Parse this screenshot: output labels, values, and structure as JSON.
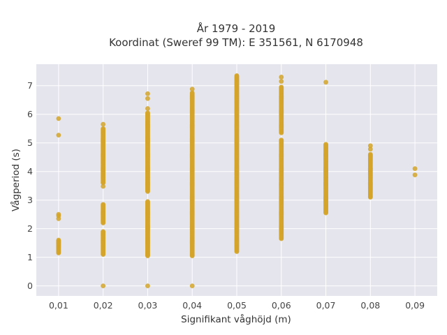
{
  "chart_data": {
    "type": "scatter",
    "title_lines": [
      "År 1979 - 2019",
      "Koordinat (Sweref 99 TM): E 351561, N 6170948"
    ],
    "xlabel": "Signifikant våghöjd (m)",
    "ylabel": "Vågperiod (s)",
    "xlim": [
      0.005,
      0.095
    ],
    "ylim": [
      -0.35,
      7.75
    ],
    "x_ticks": [
      0.01,
      0.02,
      0.03,
      0.04,
      0.05,
      0.06,
      0.07,
      0.08,
      0.09
    ],
    "x_tick_labels": [
      "0,01",
      "0,02",
      "0,03",
      "0,04",
      "0,05",
      "0,06",
      "0,07",
      "0,08",
      "0,09"
    ],
    "y_ticks": [
      0,
      1,
      2,
      3,
      4,
      5,
      6,
      7
    ],
    "y_tick_labels": [
      "0",
      "1",
      "2",
      "3",
      "4",
      "5",
      "6",
      "7"
    ],
    "grid": true,
    "point_color": "#d4a52a",
    "background_color": "#e5e5ee",
    "columns": [
      {
        "x": 0.01,
        "ranges": [
          [
            1.15,
            1.6
          ]
        ],
        "points": [
          5.85,
          5.27,
          2.5,
          2.45,
          2.35
        ]
      },
      {
        "x": 0.02,
        "ranges": [
          [
            1.1,
            1.9
          ],
          [
            2.2,
            2.85
          ],
          [
            3.6,
            5.5
          ]
        ],
        "points": [
          5.65,
          3.48,
          0.0
        ]
      },
      {
        "x": 0.03,
        "ranges": [
          [
            1.05,
            2.95
          ],
          [
            3.3,
            6.05
          ]
        ],
        "points": [
          6.72,
          6.55,
          6.2,
          0.0
        ]
      },
      {
        "x": 0.04,
        "ranges": [
          [
            1.05,
            6.75
          ]
        ],
        "points": [
          6.88,
          0.0
        ]
      },
      {
        "x": 0.05,
        "ranges": [
          [
            1.2,
            7.35
          ]
        ],
        "points": []
      },
      {
        "x": 0.06,
        "ranges": [
          [
            1.65,
            5.1
          ],
          [
            5.35,
            6.95
          ]
        ],
        "points": [
          7.3,
          7.15
        ]
      },
      {
        "x": 0.07,
        "ranges": [
          [
            2.55,
            4.95
          ]
        ],
        "points": [
          7.12
        ]
      },
      {
        "x": 0.08,
        "ranges": [
          [
            3.1,
            4.6
          ]
        ],
        "points": [
          4.9,
          4.78
        ]
      },
      {
        "x": 0.09,
        "ranges": [],
        "points": [
          4.1,
          3.88
        ]
      }
    ]
  }
}
